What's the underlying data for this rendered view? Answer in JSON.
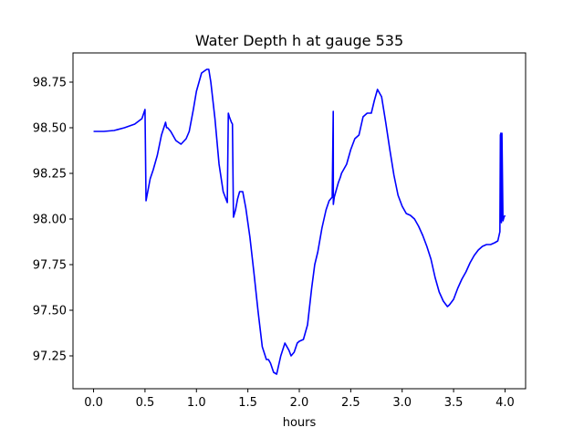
{
  "chart_data": {
    "type": "line",
    "title": "Water Depth h at gauge 535",
    "xlabel": "hours",
    "ylabel": "",
    "xlim": [
      -0.2,
      4.2
    ],
    "ylim": [
      97.07,
      98.91
    ],
    "xticks": [
      0.0,
      0.5,
      1.0,
      1.5,
      2.0,
      2.5,
      3.0,
      3.5,
      4.0
    ],
    "xtick_labels": [
      "0.0",
      "0.5",
      "1.0",
      "1.5",
      "2.0",
      "2.5",
      "3.0",
      "3.5",
      "4.0"
    ],
    "yticks": [
      97.25,
      97.5,
      97.75,
      98.0,
      98.25,
      98.5,
      98.75
    ],
    "ytick_labels": [
      "97.25",
      "97.50",
      "97.75",
      "98.00",
      "98.25",
      "98.50",
      "98.75"
    ],
    "grid": false,
    "series": [
      {
        "name": "",
        "color": "#0000ff",
        "x": [
          0.0,
          0.1,
          0.2,
          0.3,
          0.4,
          0.47,
          0.5,
          0.51,
          0.52,
          0.55,
          0.58,
          0.62,
          0.66,
          0.7,
          0.71,
          0.72,
          0.75,
          0.8,
          0.85,
          0.9,
          0.93,
          0.97,
          1.0,
          1.05,
          1.1,
          1.12,
          1.14,
          1.18,
          1.22,
          1.26,
          1.3,
          1.31,
          1.32,
          1.34,
          1.35,
          1.36,
          1.38,
          1.4,
          1.42,
          1.45,
          1.48,
          1.52,
          1.56,
          1.6,
          1.64,
          1.68,
          1.7,
          1.72,
          1.75,
          1.78,
          1.82,
          1.86,
          1.9,
          1.92,
          1.95,
          1.98,
          2.0,
          2.04,
          2.08,
          2.12,
          2.15,
          2.18,
          2.22,
          2.26,
          2.29,
          2.32,
          2.33,
          2.331,
          2.34,
          2.38,
          2.4,
          2.41,
          2.43,
          2.46,
          2.5,
          2.54,
          2.58,
          2.62,
          2.66,
          2.7,
          2.73,
          2.76,
          2.8,
          2.82,
          2.84,
          2.88,
          2.92,
          2.96,
          3.0,
          3.04,
          3.08,
          3.12,
          3.16,
          3.2,
          3.24,
          3.28,
          3.32,
          3.36,
          3.4,
          3.44,
          3.46,
          3.5,
          3.54,
          3.58,
          3.62,
          3.66,
          3.7,
          3.74,
          3.78,
          3.82,
          3.86,
          3.9,
          3.93,
          3.95,
          3.955,
          3.96,
          3.965,
          3.97,
          3.98,
          3.99,
          4.0
        ],
        "values": [
          98.48,
          98.48,
          98.485,
          98.5,
          98.52,
          98.55,
          98.6,
          98.1,
          98.13,
          98.22,
          98.27,
          98.35,
          98.46,
          98.53,
          98.5,
          98.5,
          98.48,
          98.43,
          98.41,
          98.44,
          98.48,
          98.6,
          98.7,
          98.8,
          98.82,
          98.82,
          98.75,
          98.55,
          98.3,
          98.15,
          98.09,
          98.58,
          98.56,
          98.53,
          98.52,
          98.01,
          98.05,
          98.11,
          98.15,
          98.15,
          98.06,
          97.9,
          97.7,
          97.49,
          97.3,
          97.23,
          97.23,
          97.21,
          97.16,
          97.15,
          97.25,
          97.32,
          97.28,
          97.25,
          97.27,
          97.32,
          97.33,
          97.34,
          97.42,
          97.62,
          97.75,
          97.82,
          97.95,
          98.05,
          98.1,
          98.12,
          98.59,
          98.08,
          98.12,
          98.2,
          98.23,
          98.25,
          98.27,
          98.3,
          98.38,
          98.44,
          98.46,
          98.56,
          98.58,
          98.58,
          98.65,
          98.71,
          98.67,
          98.6,
          98.53,
          98.38,
          98.24,
          98.13,
          98.07,
          98.03,
          98.02,
          98.0,
          97.96,
          97.91,
          97.85,
          97.78,
          97.68,
          97.6,
          97.55,
          97.52,
          97.53,
          97.56,
          97.62,
          97.67,
          97.71,
          97.76,
          97.8,
          97.83,
          97.85,
          97.86,
          97.86,
          97.87,
          97.88,
          97.93,
          98.46,
          98.47,
          97.98,
          98.47,
          97.99,
          98.01,
          98.02
        ]
      }
    ]
  }
}
